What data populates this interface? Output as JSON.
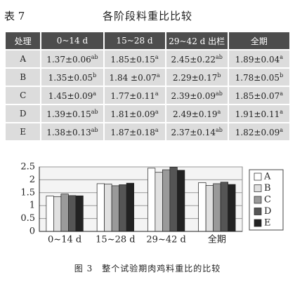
{
  "header": {
    "label": "表 7",
    "title": "各阶段料重比比较"
  },
  "table": {
    "columns": [
      "处理",
      "0~14 d",
      "15~28 d",
      "29~42 d 出栏",
      "全期"
    ],
    "rows": [
      [
        "A",
        [
          "1.37±0.06",
          "ab"
        ],
        [
          "1.85±0.15",
          "a"
        ],
        [
          "2.45±0.22",
          "ab"
        ],
        [
          "1.89±0.04",
          "a"
        ]
      ],
      [
        "B",
        [
          "1.35±0.05",
          "b"
        ],
        [
          "1.84 ±0.07",
          "a"
        ],
        [
          "2.29±0.17",
          "b"
        ],
        [
          "1.78±0.05",
          "b"
        ]
      ],
      [
        "C",
        [
          "1.45±0.09",
          "a"
        ],
        [
          "1.77±0.11",
          "a"
        ],
        [
          "2.39±0.09",
          "ab"
        ],
        [
          "1.85±0.07",
          "a"
        ]
      ],
      [
        "D",
        [
          "1.39±0.15",
          "ab"
        ],
        [
          "1.81±0.09",
          "a"
        ],
        [
          "2.49±0.19",
          "a"
        ],
        [
          "1.91±0.11",
          "a"
        ]
      ],
      [
        "E",
        [
          "1.38±0.13",
          "ab"
        ],
        [
          "1.87±0.18",
          "a"
        ],
        [
          "2.37±0.14",
          "ab"
        ],
        [
          "1.82±0.09",
          "a"
        ]
      ]
    ]
  },
  "chart_data": {
    "type": "bar",
    "caption": "图 3　整个试验期肉鸡料重比的比较",
    "categories": [
      "0~14 d",
      "15~28 d",
      "29~42 d",
      "全期"
    ],
    "series": [
      {
        "name": "A",
        "color": "#ffffff",
        "values": [
          1.37,
          1.85,
          2.45,
          1.89
        ]
      },
      {
        "name": "B",
        "color": "#e0e0e0",
        "values": [
          1.35,
          1.84,
          2.29,
          1.78
        ]
      },
      {
        "name": "C",
        "color": "#9a9a9a",
        "values": [
          1.45,
          1.77,
          2.39,
          1.85
        ]
      },
      {
        "name": "D",
        "color": "#555555",
        "values": [
          1.39,
          1.81,
          2.49,
          1.91
        ]
      },
      {
        "name": "E",
        "color": "#222222",
        "values": [
          1.38,
          1.87,
          2.37,
          1.82
        ]
      }
    ],
    "ylim": [
      0,
      2.5
    ],
    "yticks": [
      0,
      0.5,
      1,
      1.5,
      2,
      2.5
    ],
    "grid": true
  }
}
